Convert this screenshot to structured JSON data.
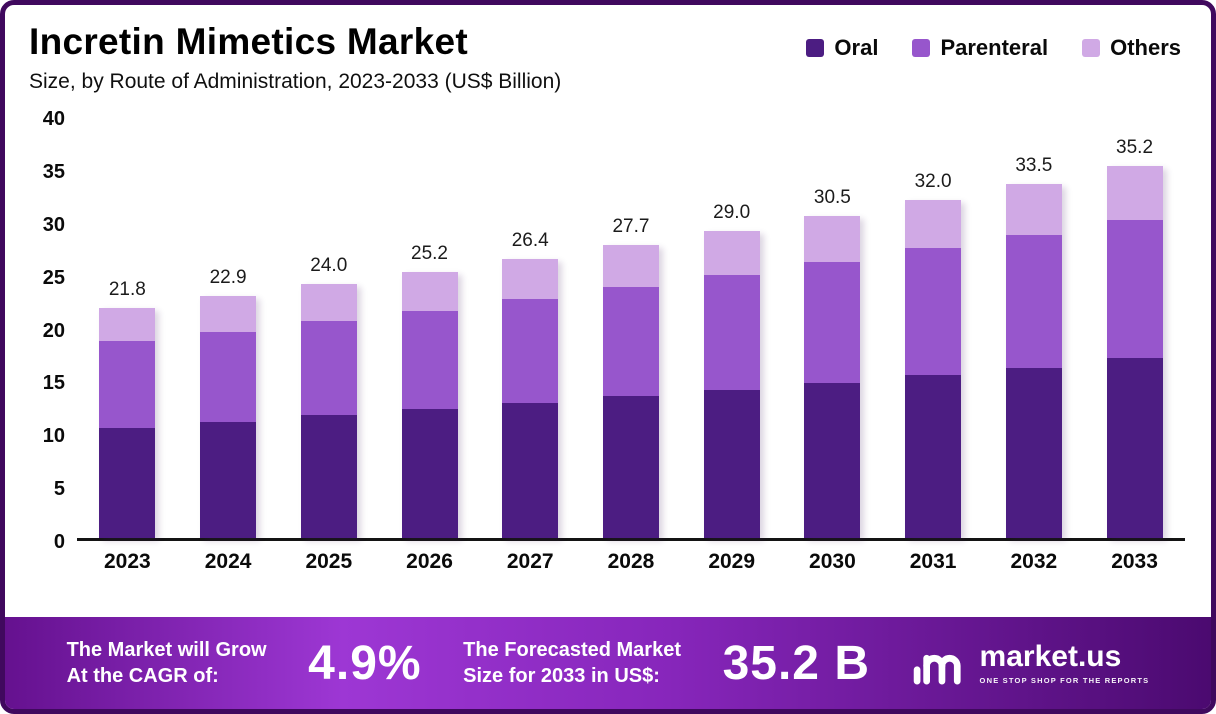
{
  "header": {
    "title": "Incretin Mimetics Market",
    "subtitle": "Size, by Route of Administration, 2023-2033 (US$ Billion)"
  },
  "legend": [
    {
      "label": "Oral",
      "color": "#4c1d82"
    },
    {
      "label": "Parenteral",
      "color": "#9756cc"
    },
    {
      "label": "Others",
      "color": "#d0a9e5"
    }
  ],
  "chart_data": {
    "type": "bar",
    "stacked": true,
    "title": "Incretin Mimetics Market Size, by Route of Administration, 2023-2033 (US$ Billion)",
    "xlabel": "",
    "ylabel": "",
    "ylim": [
      0,
      40
    ],
    "yticks": [
      0,
      5,
      10,
      15,
      20,
      25,
      30,
      35,
      40
    ],
    "grid": false,
    "legend_position": "top-right",
    "categories": [
      "2023",
      "2024",
      "2025",
      "2026",
      "2027",
      "2028",
      "2029",
      "2030",
      "2031",
      "2032",
      "2033"
    ],
    "series": [
      {
        "name": "Oral",
        "color": "#4c1d82",
        "values": [
          10.4,
          11.0,
          11.6,
          12.2,
          12.8,
          13.4,
          14.0,
          14.7,
          15.4,
          16.1,
          17.0
        ]
      },
      {
        "name": "Parenteral",
        "color": "#9756cc",
        "values": [
          8.2,
          8.5,
          8.9,
          9.3,
          9.8,
          10.3,
          10.9,
          11.4,
          12.0,
          12.6,
          13.1
        ]
      },
      {
        "name": "Others",
        "color": "#d0a9e5",
        "values": [
          3.2,
          3.4,
          3.5,
          3.7,
          3.8,
          4.0,
          4.1,
          4.4,
          4.6,
          4.8,
          5.1
        ]
      }
    ],
    "totals": [
      21.8,
      22.9,
      24.0,
      25.2,
      26.4,
      27.7,
      29.0,
      30.5,
      32.0,
      33.5,
      35.2
    ]
  },
  "footer": {
    "cagr_label_line1": "The Market will Grow",
    "cagr_label_line2": "At the CAGR of:",
    "cagr_value": "4.9%",
    "forecast_label_line1": "The Forecasted Market",
    "forecast_label_line2": "Size for 2033 in US$:",
    "forecast_value": "35.2 B",
    "brand_name": "market.us",
    "brand_tagline": "ONE STOP SHOP FOR THE REPORTS"
  }
}
